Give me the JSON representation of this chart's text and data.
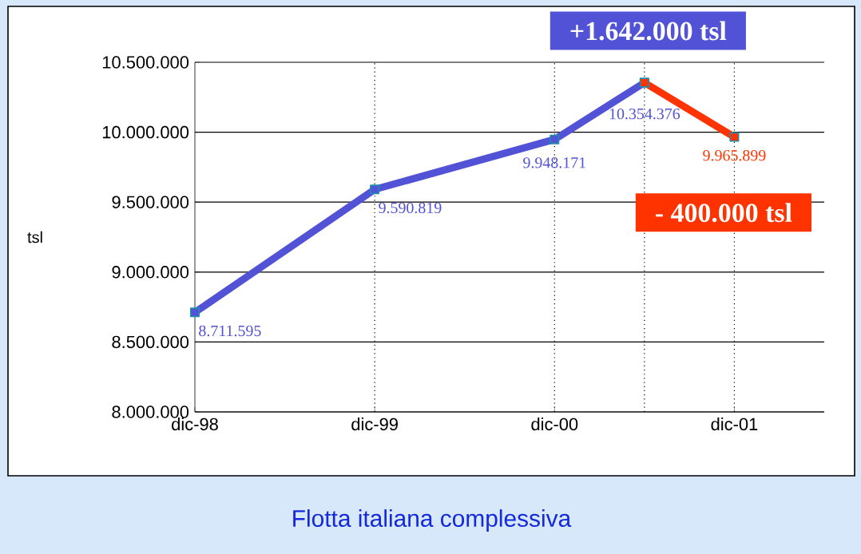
{
  "chart_data": {
    "type": "line",
    "title": "Flotta italiana complessiva",
    "ylabel": "tsl",
    "x": [
      "1998-12",
      "1999-12",
      "2000-12",
      "2001-06",
      "2001-12"
    ],
    "xlim": [
      "1998-12",
      "2002-06"
    ],
    "xticks": [
      {
        "value": "1998-12",
        "label": "dic-98"
      },
      {
        "value": "1999-12",
        "label": "dic-99"
      },
      {
        "value": "2000-12",
        "label": "dic-00"
      },
      {
        "value": "2001-12",
        "label": "dic-01"
      }
    ],
    "ylim": [
      8000000,
      10500000
    ],
    "yticks": [
      {
        "value": 8000000,
        "label": "8.000.000"
      },
      {
        "value": 8500000,
        "label": "8.500.000"
      },
      {
        "value": 9000000,
        "label": "9.000.000"
      },
      {
        "value": 9500000,
        "label": "9.500.000"
      },
      {
        "value": 10000000,
        "label": "10.000.000"
      },
      {
        "value": 10500000,
        "label": "10.500.000"
      }
    ],
    "series": [
      {
        "color": "#5252d6",
        "values": [
          8711595,
          9590819,
          9948171,
          10354376,
          null
        ],
        "value_labels": [
          "8.711.595",
          "9.590.819",
          "9.948.171",
          "10.354.376",
          null
        ]
      },
      {
        "color": "#ff3300",
        "values": [
          null,
          null,
          null,
          10354376,
          9965899
        ],
        "value_labels": [
          null,
          null,
          null,
          null,
          "9.965.899"
        ]
      }
    ],
    "ref_lines": [
      {
        "axis": "x",
        "value": "1999-12",
        "line_style": "dotted"
      },
      {
        "axis": "x",
        "value": "2000-12",
        "line_style": "dotted"
      },
      {
        "axis": "x",
        "value": "2001-06",
        "line_style": "dotted"
      },
      {
        "axis": "x",
        "value": "2001-12",
        "line_style": "dotted"
      }
    ],
    "annotations": [
      "+1.642.000 tsl",
      "- 400.000 tsl"
    ],
    "grid": "y",
    "marker": "square",
    "line_style": "solid"
  }
}
